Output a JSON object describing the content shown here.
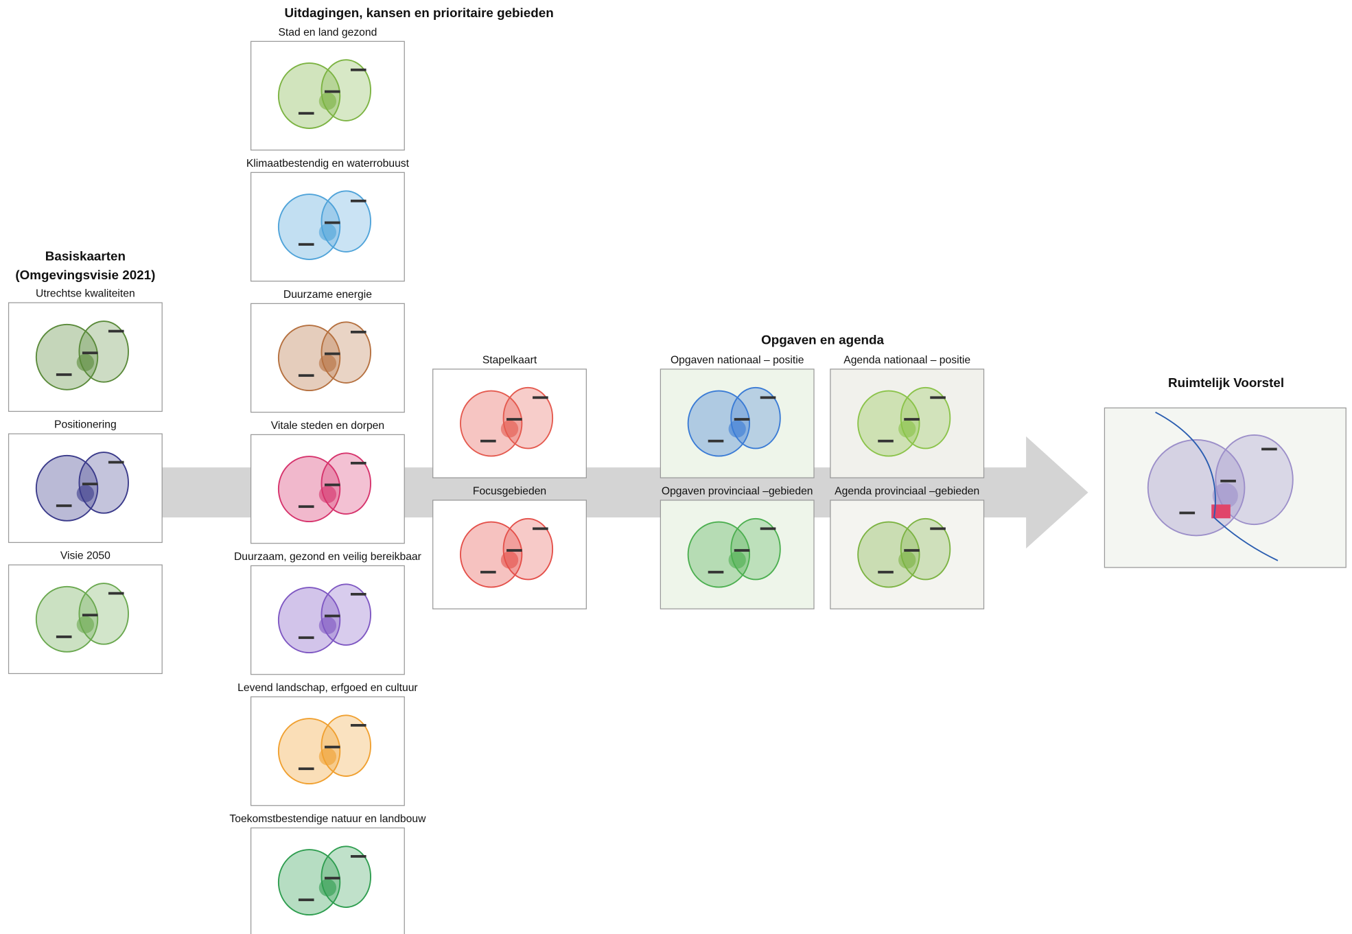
{
  "basis": {
    "title": "Basiskaarten",
    "subtitle": "(Omgevingsvisie 2021)",
    "maps": [
      "Utrechtse kwaliteiten",
      "Positionering",
      "Visie 2050"
    ]
  },
  "uitdagingen": {
    "title": "Uitdagingen, kansen en prioritaire gebieden",
    "maps": [
      "Stad en land gezond",
      "Klimaatbestendig en waterrobuust",
      "Duurzame energie",
      "Vitale steden en dorpen",
      "Duurzaam, gezond en veilig bereikbaar",
      "Levend landschap, erfgoed en cultuur",
      "Toekomstbestendige natuur en landbouw"
    ]
  },
  "synthese": {
    "maps": [
      "Stapelkaart",
      "Focusgebieden"
    ]
  },
  "opgaven": {
    "title": "Opgaven en agenda",
    "maps": [
      "Opgaven nationaal – positie",
      "Agenda nationaal – positie",
      "Opgaven provinciaal –gebieden",
      "Agenda provinciaal –gebieden"
    ]
  },
  "voorstel": {
    "title": "Ruimtelijk Voorstel"
  }
}
